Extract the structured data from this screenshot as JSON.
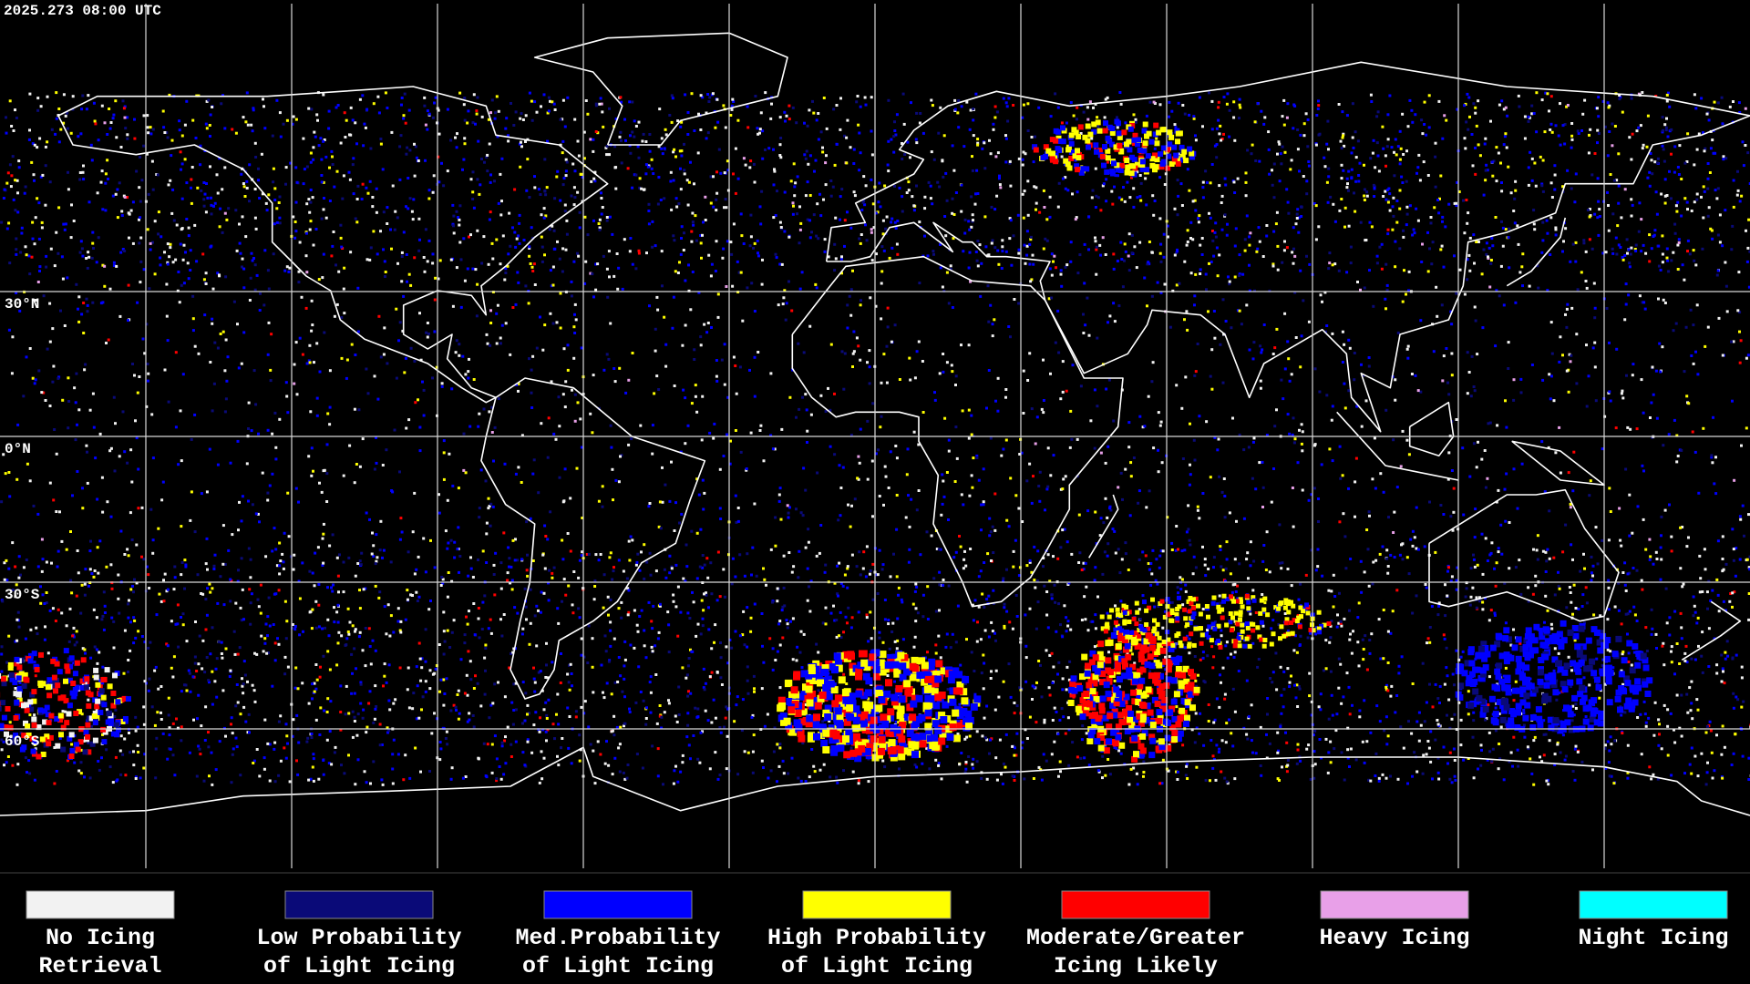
{
  "header": {
    "timestamp": "2025.273 08:00 UTC"
  },
  "map": {
    "latitude_labels": [
      "30°N",
      "0°N",
      "30°S",
      "60°S"
    ]
  },
  "legend": {
    "items": [
      {
        "lines": [
          "No Icing",
          "Retrieval"
        ],
        "color": "#f2f2f2"
      },
      {
        "lines": [
          "Low Probability",
          "of Light Icing"
        ],
        "color": "#0a0a78"
      },
      {
        "lines": [
          "Med.Probability",
          "of Light Icing"
        ],
        "color": "#0000ff"
      },
      {
        "lines": [
          "High Probability",
          "of Light Icing"
        ],
        "color": "#ffff00"
      },
      {
        "lines": [
          "Moderate/Greater",
          "Icing Likely"
        ],
        "color": "#ff0000"
      },
      {
        "lines": [
          "Heavy Icing"
        ],
        "color": "#e8a0e8"
      },
      {
        "lines": [
          "Night Icing"
        ],
        "color": "#00ffff"
      }
    ]
  }
}
